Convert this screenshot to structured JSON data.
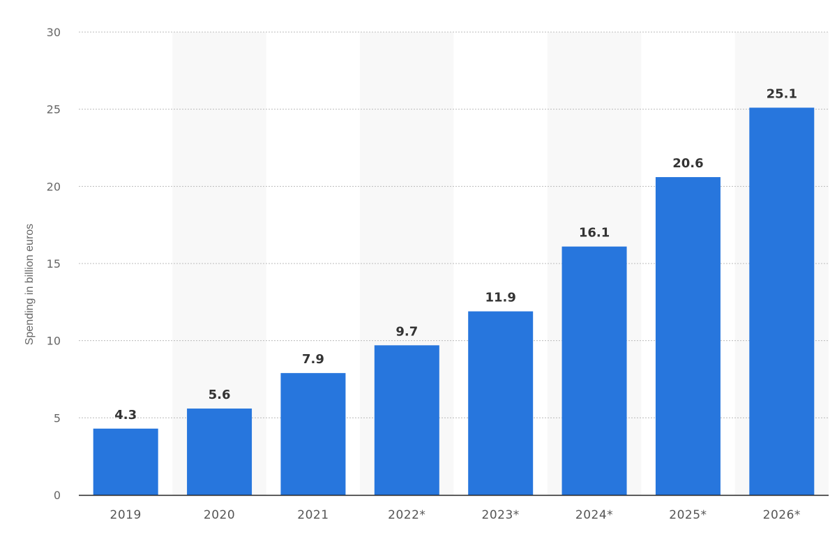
{
  "chart_data": {
    "type": "bar",
    "title": "",
    "xlabel": "",
    "ylabel": "Spending in billion euros",
    "categories": [
      "2019",
      "2020",
      "2021",
      "2022*",
      "2023*",
      "2024*",
      "2025*",
      "2026*"
    ],
    "values": [
      4.3,
      5.6,
      7.9,
      9.7,
      11.9,
      16.1,
      20.6,
      25.1
    ],
    "value_labels": [
      "4.3",
      "5.6",
      "7.9",
      "9.7",
      "11.9",
      "16.1",
      "20.6",
      "25.1"
    ],
    "yticks": [
      0,
      5,
      10,
      15,
      20,
      25,
      30
    ],
    "ylim": [
      0,
      30
    ],
    "grid": true,
    "alternating_bands": true,
    "colors": {
      "bar": "#2776dd",
      "band": "#f8f8f8",
      "grid": "#bbbbbb",
      "axis": "#222222"
    }
  }
}
